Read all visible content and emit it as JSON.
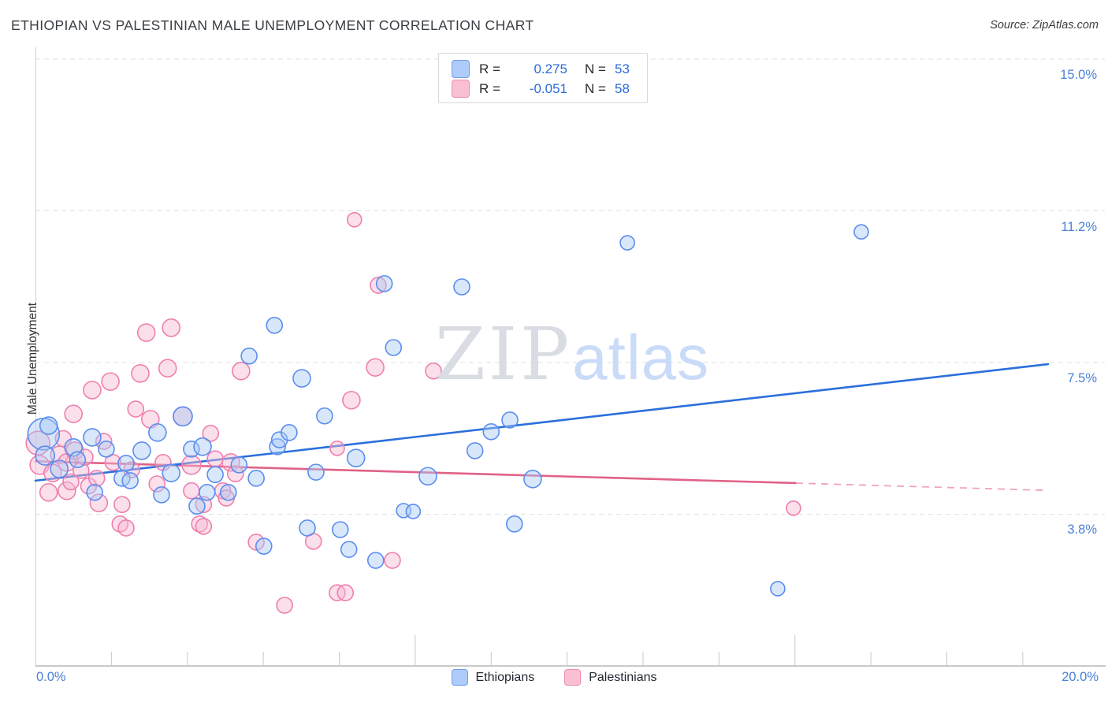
{
  "header": {
    "title": "ETHIOPIAN VS PALESTINIAN MALE UNEMPLOYMENT CORRELATION CHART",
    "source": "Source: ZipAtlas.com"
  },
  "watermark": {
    "zip": "ZIP",
    "atlas": "atlas"
  },
  "chart_data": {
    "type": "scatter",
    "title": "Ethiopian vs Palestinian Male Unemployment",
    "ylabel": "Male Unemployment",
    "xlabel": "",
    "x_axis": {
      "min": 0,
      "max": 20,
      "min_label": "0.0%",
      "max_label": "20.0%",
      "minor_ticks_pct": [
        1.5,
        3,
        4.5,
        6,
        9,
        10.5,
        12,
        13.5,
        16.5,
        18,
        19.5
      ],
      "major_ticks_pct": [
        7.5,
        15
      ]
    },
    "y_axis": {
      "label": "Male Unemployment",
      "gridlines_pct": [
        15.0,
        11.25,
        7.5,
        3.75
      ],
      "tick_labels": [
        {
          "text": "15.0%"
        },
        {
          "text": "11.2%"
        },
        {
          "text": "7.5%"
        },
        {
          "text": "3.8%"
        }
      ],
      "ylim": [
        0,
        15.5
      ]
    },
    "legend": {
      "ethiopians": {
        "r_prefix": "R =",
        "r_value": "0.275",
        "n_prefix": "N =",
        "n_value": "53"
      },
      "palestinians": {
        "r_prefix": "R =",
        "r_value": "-0.051",
        "n_prefix": "N =",
        "n_value": "58"
      }
    },
    "series": [
      {
        "name": "Palestinians",
        "R": -0.051,
        "N": 58,
        "stroke": "#ef7fae",
        "fill": "rgba(247,183,210,0.45)",
        "trend": {
          "solid": [
            [
              0,
              5.06
            ],
            [
              15.02,
              4.52
            ]
          ],
          "dashed": [
            [
              15.02,
              4.52
            ],
            [
              19.97,
              4.34
            ]
          ],
          "color": "#e06287",
          "dash_color": "#f0a3bd"
        },
        "points": [
          [
            0.05,
            5.51,
            15
          ],
          [
            0.08,
            4.97,
            12
          ],
          [
            0.34,
            4.77,
            11
          ],
          [
            0.47,
            5.22,
            11
          ],
          [
            0.55,
            5.62,
            10
          ],
          [
            0.62,
            5.03,
            11
          ],
          [
            0.26,
            4.29,
            11
          ],
          [
            0.62,
            4.33,
            11
          ],
          [
            0.7,
            4.55,
            10
          ],
          [
            0.75,
            6.23,
            11
          ],
          [
            0.78,
            5.32,
            11
          ],
          [
            0.9,
            4.83,
            10
          ],
          [
            0.98,
            5.16,
            10
          ],
          [
            1.05,
            4.45,
            10
          ],
          [
            1.12,
            6.82,
            11
          ],
          [
            1.25,
            4.03,
            11
          ],
          [
            1.21,
            4.64,
            10
          ],
          [
            1.35,
            5.55,
            10
          ],
          [
            1.48,
            7.03,
            11
          ],
          [
            1.53,
            5.03,
            10
          ],
          [
            1.71,
            3.99,
            10
          ],
          [
            1.67,
            3.51,
            10
          ],
          [
            1.79,
            3.41,
            10
          ],
          [
            1.9,
            4.85,
            10
          ],
          [
            1.98,
            6.35,
            10
          ],
          [
            2.07,
            7.23,
            11
          ],
          [
            2.19,
            8.24,
            11
          ],
          [
            2.27,
            6.1,
            11
          ],
          [
            2.4,
            4.5,
            10
          ],
          [
            2.52,
            5.03,
            10
          ],
          [
            2.61,
            7.36,
            11
          ],
          [
            2.68,
            8.36,
            11
          ],
          [
            2.91,
            6.17,
            12
          ],
          [
            3.08,
            4.97,
            12
          ],
          [
            3.08,
            4.33,
            10
          ],
          [
            3.24,
            3.51,
            10
          ],
          [
            3.32,
            3.45,
            10
          ],
          [
            3.32,
            3.99,
            10
          ],
          [
            3.46,
            5.75,
            10
          ],
          [
            3.55,
            5.12,
            10
          ],
          [
            3.7,
            4.33,
            10
          ],
          [
            3.77,
            4.15,
            10
          ],
          [
            3.86,
            5.03,
            11
          ],
          [
            3.95,
            4.75,
            10
          ],
          [
            4.06,
            7.29,
            11
          ],
          [
            4.36,
            3.06,
            10
          ],
          [
            4.92,
            1.5,
            10
          ],
          [
            5.49,
            3.08,
            10
          ],
          [
            5.96,
            5.38,
            9
          ],
          [
            5.96,
            1.81,
            10
          ],
          [
            6.12,
            1.81,
            10
          ],
          [
            6.24,
            6.57,
            11
          ],
          [
            6.3,
            11.03,
            9
          ],
          [
            6.71,
            7.38,
            11
          ],
          [
            6.77,
            9.41,
            10
          ],
          [
            7.05,
            2.61,
            10
          ],
          [
            7.86,
            7.29,
            10
          ],
          [
            14.97,
            3.9,
            9
          ]
        ]
      },
      {
        "name": "Ethiopians",
        "R": 0.275,
        "N": 53,
        "stroke": "#5b8def",
        "fill": "rgba(168,201,245,0.45)",
        "trend": {
          "solid": [
            [
              0,
              4.58
            ],
            [
              20,
              7.46
            ]
          ],
          "dashed": null,
          "color": "#2b6fdb",
          "dash_color": null
        },
        "points": [
          [
            0.16,
            5.73,
            20
          ],
          [
            0.26,
            5.94,
            11
          ],
          [
            0.19,
            5.2,
            12
          ],
          [
            0.47,
            4.87,
            11
          ],
          [
            0.75,
            5.4,
            11
          ],
          [
            0.83,
            5.1,
            10
          ],
          [
            1.12,
            5.65,
            11
          ],
          [
            1.17,
            4.29,
            10
          ],
          [
            1.4,
            5.36,
            10
          ],
          [
            1.71,
            4.64,
            10
          ],
          [
            1.79,
            5.01,
            10
          ],
          [
            1.87,
            4.58,
            10
          ],
          [
            2.1,
            5.32,
            11
          ],
          [
            2.41,
            5.77,
            11
          ],
          [
            2.49,
            4.23,
            10
          ],
          [
            2.68,
            4.77,
            11
          ],
          [
            2.91,
            6.17,
            12
          ],
          [
            3.08,
            5.36,
            10
          ],
          [
            3.3,
            5.42,
            11
          ],
          [
            3.39,
            4.29,
            10
          ],
          [
            3.55,
            4.73,
            10
          ],
          [
            3.19,
            3.95,
            10
          ],
          [
            3.81,
            4.29,
            10
          ],
          [
            4.02,
            4.97,
            10
          ],
          [
            4.22,
            7.66,
            10
          ],
          [
            4.36,
            4.64,
            10
          ],
          [
            4.51,
            2.96,
            10
          ],
          [
            4.72,
            8.42,
            10
          ],
          [
            4.78,
            5.42,
            10
          ],
          [
            4.82,
            5.59,
            10
          ],
          [
            5.01,
            5.77,
            10
          ],
          [
            5.26,
            7.11,
            11
          ],
          [
            5.37,
            3.41,
            10
          ],
          [
            5.54,
            4.79,
            10
          ],
          [
            5.71,
            6.18,
            10
          ],
          [
            6.02,
            3.37,
            10
          ],
          [
            6.19,
            2.88,
            10
          ],
          [
            6.33,
            5.14,
            11
          ],
          [
            6.72,
            2.61,
            10
          ],
          [
            6.89,
            9.45,
            10
          ],
          [
            7.07,
            7.87,
            10
          ],
          [
            7.27,
            3.84,
            9
          ],
          [
            7.46,
            3.82,
            9
          ],
          [
            7.75,
            4.69,
            11
          ],
          [
            8.42,
            9.37,
            10
          ],
          [
            8.68,
            5.32,
            10
          ],
          [
            9.0,
            5.79,
            10
          ],
          [
            9.37,
            6.08,
            10
          ],
          [
            9.46,
            3.51,
            10
          ],
          [
            9.82,
            4.62,
            11
          ],
          [
            11.69,
            10.46,
            9
          ],
          [
            14.66,
            1.91,
            9
          ],
          [
            16.31,
            10.73,
            9
          ]
        ]
      }
    ]
  }
}
